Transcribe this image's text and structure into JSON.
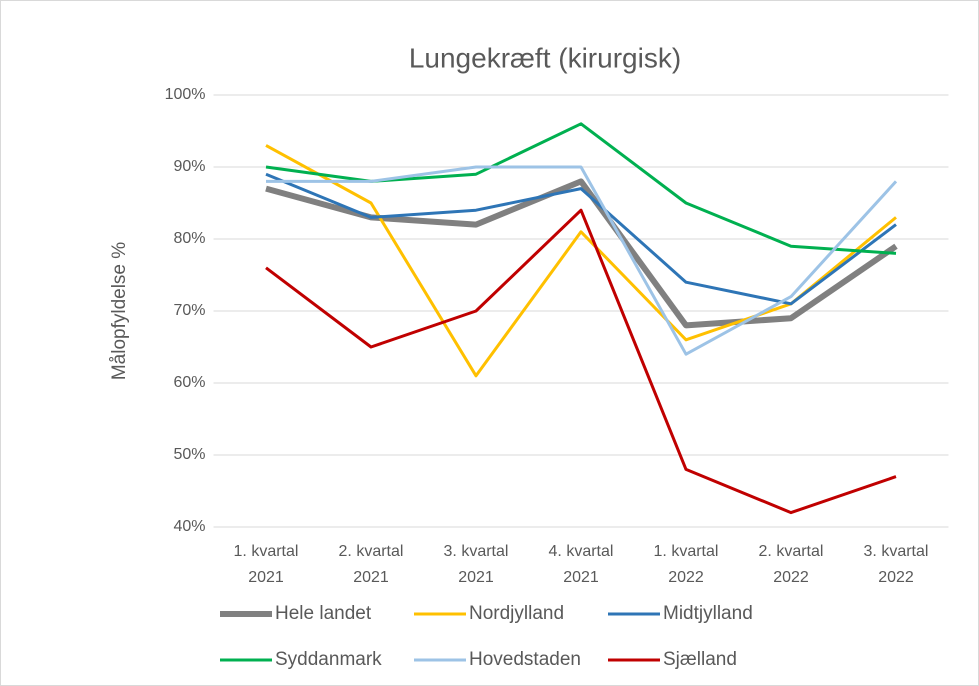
{
  "chart_data": {
    "type": "line",
    "title": "Lungekræft (kirurgisk)",
    "y_label": "Målopfyldelse %",
    "categories": [
      "1. kvartal 2021",
      "2. kvartal 2021",
      "3. kvartal 2021",
      "4. kvartal 2021",
      "1. kvartal 2022",
      "2. kvartal 2022",
      "3. kvartal 2022"
    ],
    "series": [
      {
        "name": "Hele landet",
        "color": "#808080",
        "line_width": 6,
        "values": [
          87,
          83,
          82,
          88,
          68,
          69,
          79
        ]
      },
      {
        "name": "Nordjylland",
        "color": "#ffc000",
        "line_width": 3,
        "values": [
          93,
          85,
          61,
          81,
          66,
          71,
          83
        ]
      },
      {
        "name": "Midtjylland",
        "color": "#2e75b6",
        "line_width": 3,
        "values": [
          89,
          83,
          84,
          87,
          74,
          71,
          82
        ]
      },
      {
        "name": "Syddanmark",
        "color": "#00b050",
        "line_width": 3,
        "values": [
          90,
          88,
          89,
          96,
          85,
          79,
          78
        ]
      },
      {
        "name": "Hovedstaden",
        "color": "#9dc3e6",
        "line_width": 3,
        "values": [
          88,
          88,
          90,
          90,
          64,
          72,
          88
        ]
      },
      {
        "name": "Sjælland",
        "color": "#c00000",
        "line_width": 3,
        "values": [
          76,
          65,
          70,
          84,
          48,
          42,
          47
        ]
      }
    ],
    "ylim": [
      40,
      100
    ],
    "yticks": [
      {
        "value": 40,
        "label": "40%"
      },
      {
        "value": 50,
        "label": "50%"
      },
      {
        "value": 60,
        "label": "60%"
      },
      {
        "value": 70,
        "label": "70%"
      },
      {
        "value": 80,
        "label": "80%"
      },
      {
        "value": 90,
        "label": "90%"
      },
      {
        "value": 100,
        "label": "100%"
      }
    ],
    "grid": true,
    "legend": "bottom"
  }
}
